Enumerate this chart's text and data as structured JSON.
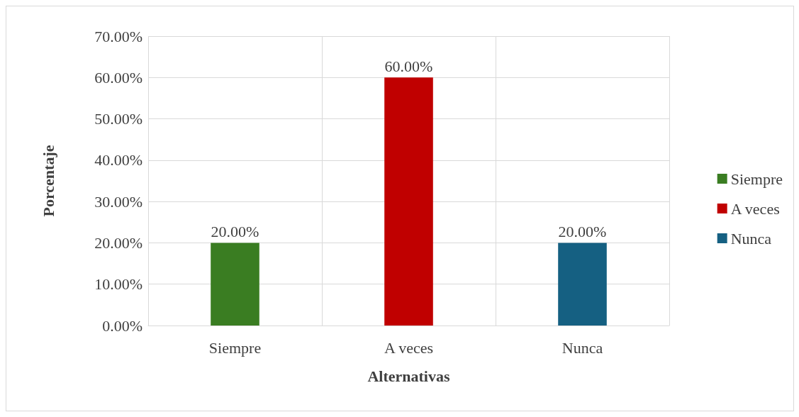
{
  "chart_data": {
    "type": "bar",
    "xlabel": "Alternativas",
    "ylabel": "Porcentaje",
    "categories": [
      "Siempre",
      "A veces",
      "Nunca"
    ],
    "series": [
      {
        "name": "Siempre",
        "color": "#3a7d22",
        "values": [
          20,
          null,
          null
        ],
        "value_labels": [
          "20.00%",
          null,
          null
        ]
      },
      {
        "name": "A veces",
        "color": "#c00000",
        "values": [
          null,
          60,
          null
        ],
        "value_labels": [
          null,
          "60.00%",
          null
        ]
      },
      {
        "name": "Nunca",
        "color": "#156082",
        "values": [
          null,
          null,
          20
        ],
        "value_labels": [
          null,
          null,
          "20.00%"
        ]
      }
    ],
    "ylim": [
      0,
      70
    ],
    "yticks": [
      {
        "value": 0,
        "label": "0.00%"
      },
      {
        "value": 10,
        "label": "10.00%"
      },
      {
        "value": 20,
        "label": "20.00%"
      },
      {
        "value": 30,
        "label": "30.00%"
      },
      {
        "value": 40,
        "label": "40.00%"
      },
      {
        "value": 50,
        "label": "50.00%"
      },
      {
        "value": 60,
        "label": "60.00%"
      },
      {
        "value": 70,
        "label": "70.00%"
      }
    ],
    "grid": true,
    "legend": "right"
  }
}
